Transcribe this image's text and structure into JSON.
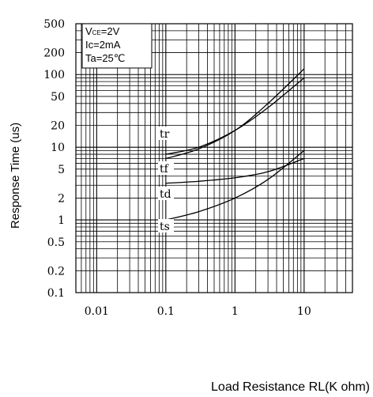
{
  "chart_data": {
    "type": "line",
    "xlabel": "Load Resistance RL(K ohm)",
    "ylabel": "Response Time (us)",
    "x_scale": "log",
    "y_scale": "log",
    "xlim": [
      0.005,
      50
    ],
    "ylim": [
      0.1,
      500
    ],
    "grid": true,
    "x_ticks": [
      "0.01",
      "0.1",
      "1",
      "10"
    ],
    "y_ticks": [
      "0.1",
      "0.2",
      "0.5",
      "1",
      "2",
      "5",
      "10",
      "20",
      "50",
      "100",
      "200",
      "500"
    ],
    "conditions": [
      "V",
      "CE",
      "=2V",
      "Ic=2mA",
      "Ta=25℃"
    ],
    "series": [
      {
        "name": "tr",
        "x": [
          0.1,
          0.3,
          1,
          3,
          10
        ],
        "y": [
          8,
          10,
          17,
          35,
          90
        ]
      },
      {
        "name": "tf",
        "x": [
          0.1,
          0.3,
          1,
          3,
          10
        ],
        "y": [
          7,
          9.5,
          17,
          40,
          120
        ]
      },
      {
        "name": "td",
        "x": [
          0.1,
          0.3,
          1,
          3,
          10
        ],
        "y": [
          3.2,
          3.4,
          3.8,
          4.6,
          7
        ]
      },
      {
        "name": "ts",
        "x": [
          0.1,
          0.3,
          1,
          3,
          10
        ],
        "y": [
          1.0,
          1.3,
          2.0,
          3.6,
          9
        ]
      }
    ]
  }
}
